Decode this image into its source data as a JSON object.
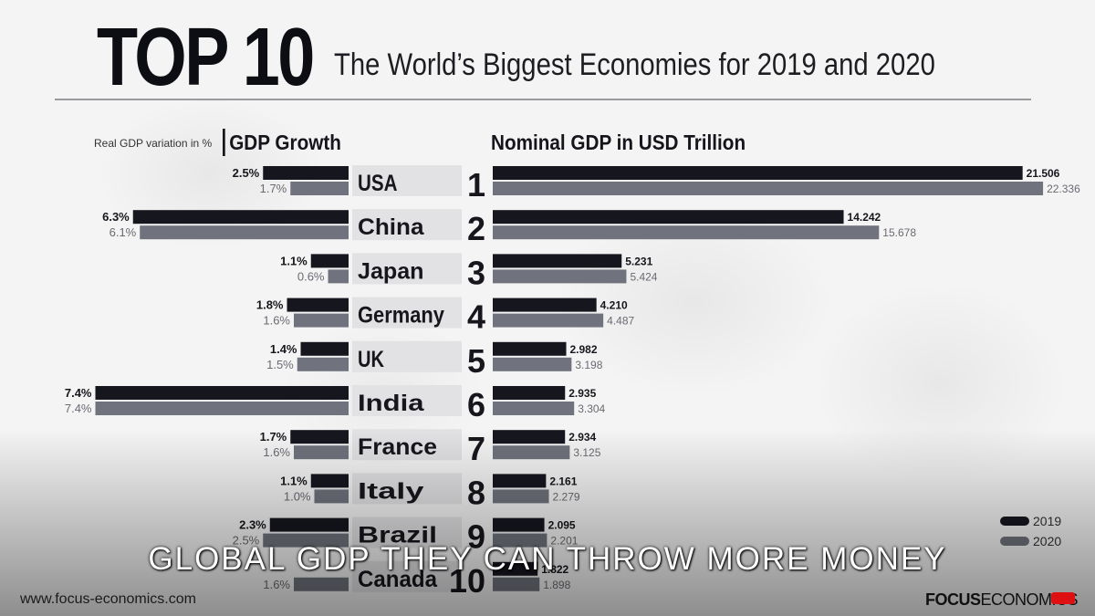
{
  "header": {
    "title": "TOP 10",
    "subtitle": "The World’s Biggest Economies for 2019 and 2020"
  },
  "left_panel": {
    "caption": "Real GDP variation in %",
    "header": "GDP Growth"
  },
  "right_panel": {
    "header": "Nominal GDP in USD Trillion"
  },
  "footer": {
    "url": "www.focus-economics.com",
    "logo_bold": "FOCUS",
    "logo_rest": "ECONOMICS"
  },
  "legend": [
    {
      "label": "2019",
      "color": "#16161f"
    },
    {
      "label": "2020",
      "color": "#70737d"
    }
  ],
  "caption": "GLOBAL GDP THEY CAN THROW MORE MONEY",
  "chart_data": [
    {
      "type": "bar",
      "title": "GDP Growth",
      "caption": "Real GDP variation in %",
      "categories": [
        "USA",
        "China",
        "Japan",
        "Germany",
        "UK",
        "India",
        "France",
        "Italy",
        "Brazil",
        "Canada"
      ],
      "series": [
        {
          "name": "2019",
          "color": "#16161f",
          "values": [
            2.5,
            6.3,
            1.1,
            1.8,
            1.4,
            7.4,
            1.7,
            1.1,
            2.3,
            null
          ],
          "labels": [
            "2.5%",
            "6.3%",
            "1.1%",
            "1.8%",
            "1.4%",
            "7.4%",
            "1.7%",
            "1.1%",
            "2.3%",
            ""
          ]
        },
        {
          "name": "2020",
          "color": "#70737d",
          "values": [
            1.7,
            6.1,
            0.6,
            1.6,
            1.5,
            7.4,
            1.6,
            1.0,
            2.5,
            1.6
          ],
          "labels": [
            "1.7%",
            "6.1%",
            "0.6%",
            "1.6%",
            "1.5%",
            "7.4%",
            "1.6%",
            "1.0%",
            "2.5%",
            "1.6%"
          ]
        }
      ],
      "ranks": [
        "1",
        "2",
        "3",
        "4",
        "5",
        "6",
        "7",
        "8",
        "9",
        "10"
      ],
      "orientation": "horizontal-leftward"
    },
    {
      "type": "bar",
      "title": "Nominal GDP in USD Trillion",
      "categories": [
        "USA",
        "China",
        "Japan",
        "Germany",
        "UK",
        "India",
        "France",
        "Italy",
        "Brazil",
        "Canada"
      ],
      "series": [
        {
          "name": "2019",
          "color": "#16161f",
          "values": [
            21.506,
            14.242,
            5.231,
            4.21,
            2.982,
            2.935,
            2.934,
            2.161,
            2.095,
            1.822
          ],
          "labels": [
            "21.506",
            "14.242",
            "5.231",
            "4.210",
            "2.982",
            "2.935",
            "2.934",
            "2.161",
            "2.095",
            "1.822"
          ]
        },
        {
          "name": "2020",
          "color": "#70737d",
          "values": [
            22.336,
            15.678,
            5.424,
            4.487,
            3.198,
            3.304,
            3.125,
            2.279,
            2.201,
            1.898
          ],
          "labels": [
            "22.336",
            "15.678",
            "5.424",
            "4.487",
            "3.198",
            "3.304",
            "3.125",
            "2.279",
            "2.201",
            "1.898"
          ]
        }
      ],
      "orientation": "horizontal"
    }
  ]
}
